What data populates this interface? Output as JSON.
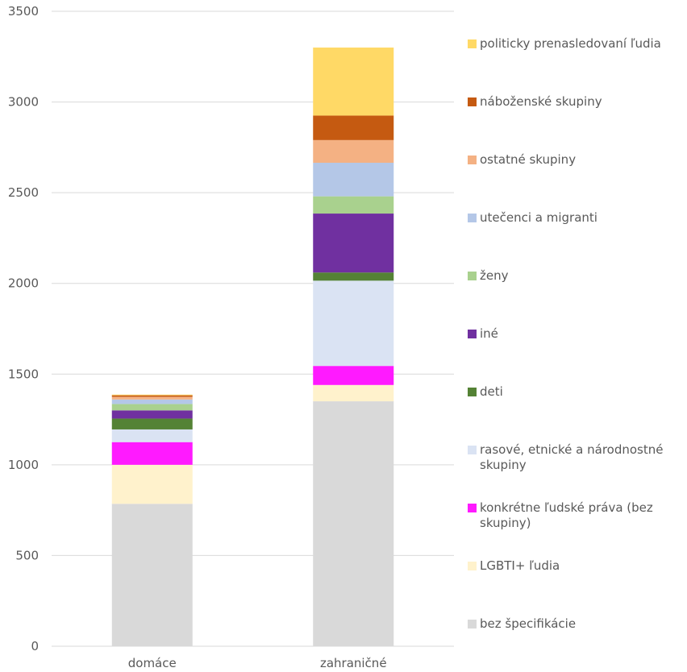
{
  "chart_data": {
    "type": "stacked-bar",
    "categories": [
      "domáce",
      "zahraničné"
    ],
    "ylim": [
      0,
      3500
    ],
    "yticks": [
      0,
      500,
      1000,
      1500,
      2000,
      2500,
      3000,
      3500
    ],
    "grid": true,
    "legend_position": "right",
    "series": [
      {
        "name": "bez špecifikácie",
        "color": "#d9d9d9",
        "values": [
          785,
          1350
        ]
      },
      {
        "name": "LGBTI+ ľudia",
        "color": "#fff2cc",
        "values": [
          215,
          90
        ]
      },
      {
        "name": "konkrétne ľudské práva (bez skupiny)",
        "color": "#ff1aff",
        "values": [
          125,
          105
        ]
      },
      {
        "name": "rasové, etnické a národnostné skupiny",
        "color": "#dae3f3",
        "values": [
          70,
          470
        ]
      },
      {
        "name": "deti",
        "color": "#548235",
        "values": [
          60,
          45
        ]
      },
      {
        "name": "iné",
        "color": "#7030a0",
        "values": [
          45,
          325
        ]
      },
      {
        "name": "ženy",
        "color": "#a9d18e",
        "values": [
          35,
          95
        ]
      },
      {
        "name": "utečenci a migranti",
        "color": "#b4c7e7",
        "values": [
          25,
          185
        ]
      },
      {
        "name": "ostatné skupiny",
        "color": "#f4b183",
        "values": [
          15,
          125
        ]
      },
      {
        "name": "náboženské skupiny",
        "color": "#c55a11",
        "values": [
          8,
          135
        ]
      },
      {
        "name": "politicky prenasledovaní ľudia",
        "color": "#ffd966",
        "values": [
          4,
          375
        ]
      }
    ]
  }
}
